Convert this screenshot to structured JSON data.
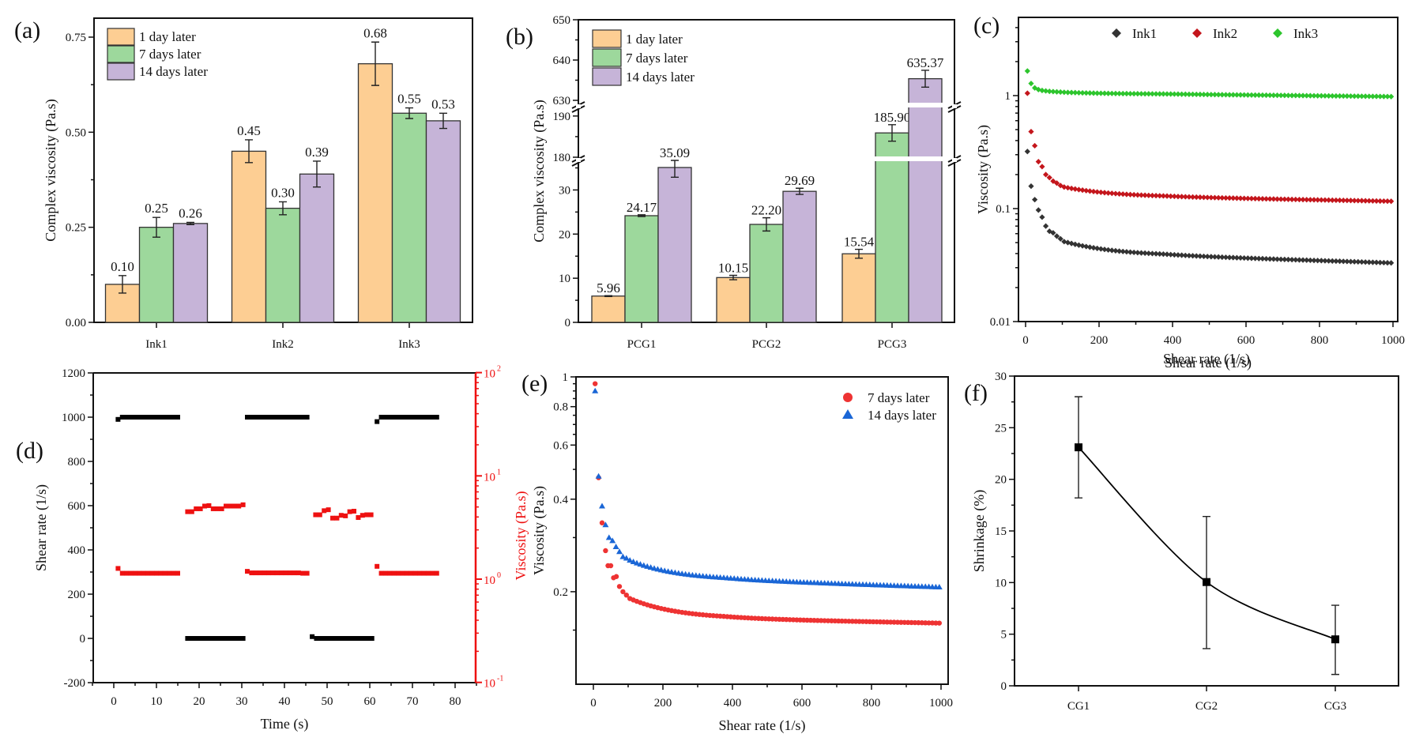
{
  "figure": {
    "panel_labels": [
      "(a)",
      "(b)",
      "(c)",
      "(d)",
      "(e)",
      "(f)"
    ]
  },
  "colors": {
    "day1": "#FDCE93",
    "day7": "#9DD89C",
    "day14": "#C6B4D8",
    "ink1": "#333333",
    "ink2": "#C4161C",
    "ink3": "#2DC52D",
    "red": "#EE3333",
    "blue": "#1A66D6",
    "axis_red": "#EE1111",
    "black": "#000000"
  },
  "chart_data": [
    {
      "id": "a",
      "type": "bar",
      "title": "",
      "xlabel": "",
      "ylabel": "Complex viscosity (Pa.s)",
      "categories": [
        "Ink1",
        "Ink2",
        "Ink3"
      ],
      "ylim": [
        0,
        0.8
      ],
      "yticks": [
        0.0,
        0.25,
        0.5,
        0.75
      ],
      "ytick_labels": [
        "0.00",
        "0.25",
        "0.50",
        "0.75"
      ],
      "legend": "top-left",
      "series": [
        {
          "name": "1 day later",
          "color_key": "day1",
          "values": [
            0.1,
            0.45,
            0.68
          ],
          "errors": [
            0.023,
            0.03,
            0.057
          ],
          "labels": [
            "0.10",
            "0.45",
            "0.68"
          ]
        },
        {
          "name": "7 days later",
          "color_key": "day7",
          "values": [
            0.25,
            0.3,
            0.55
          ],
          "errors": [
            0.026,
            0.017,
            0.014
          ],
          "labels": [
            "0.25",
            "0.30",
            "0.55"
          ]
        },
        {
          "name": "14 days later",
          "color_key": "day14",
          "values": [
            0.26,
            0.39,
            0.53
          ],
          "errors": [
            0.003,
            0.034,
            0.02
          ],
          "labels": [
            "0.26",
            "0.39",
            "0.53"
          ]
        }
      ]
    },
    {
      "id": "b",
      "type": "bar",
      "title": "",
      "xlabel": "",
      "ylabel": "Complex viscosity (Pa.s)",
      "categories": [
        "PCG1",
        "PCG2",
        "PCG3"
      ],
      "axis_breaks": [
        [
          36.7,
          180
        ],
        [
          191.5,
          630
        ]
      ],
      "ylim": [
        0,
        650
      ],
      "yticks": [
        0,
        10,
        20,
        30,
        180,
        190,
        630,
        640,
        650
      ],
      "ytick_labels": [
        "0",
        "10",
        "20",
        "30",
        "180",
        "190",
        "630",
        "640",
        "650"
      ],
      "legend": "top-left",
      "series": [
        {
          "name": "1 day later",
          "color_key": "day1",
          "values": [
            5.96,
            10.15,
            15.54
          ],
          "errors": [
            0.1,
            0.5,
            1.0
          ],
          "labels": [
            "5.96",
            "10.15",
            "15.54"
          ]
        },
        {
          "name": "7 days later",
          "color_key": "day7",
          "values": [
            24.17,
            22.2,
            185.9
          ],
          "errors": [
            0.2,
            1.5,
            2.0
          ],
          "labels": [
            "24.17",
            "22.20",
            "185.90"
          ]
        },
        {
          "name": "14 days later",
          "color_key": "day14",
          "values": [
            35.09,
            29.69,
            635.37
          ],
          "errors": [
            2.2,
            0.7,
            2.1
          ],
          "labels": [
            "35.09",
            "29.69",
            "635.37"
          ]
        }
      ]
    },
    {
      "id": "c",
      "type": "scatter",
      "title": "",
      "xlabel": "Shear rate (1/s)",
      "ylabel": "Viscosity (Pa.s)",
      "yscale": "log",
      "xlim": [
        -20,
        1015
      ],
      "ylim": [
        0.01,
        4.9
      ],
      "xticks": [
        0,
        200,
        400,
        600,
        800,
        1000
      ],
      "yticks": [
        0.01,
        0.1,
        1
      ],
      "ytick_labels": [
        "0.01",
        "0.1",
        "1"
      ],
      "legend": "top-center",
      "marker": "diamond",
      "series": [
        {
          "name": "Ink1",
          "color_key": "ink1",
          "x_first": [
            5,
            15,
            25,
            35,
            45,
            55,
            65,
            75,
            85,
            95
          ],
          "y_first": [
            0.32,
            0.158,
            0.12,
            0.097,
            0.084,
            0.07,
            0.063,
            0.061,
            0.057,
            0.054
          ],
          "plateau": {
            "from": 105,
            "to": 1000,
            "y_start": 0.051,
            "y_mid": 0.038,
            "y_end": 0.033
          }
        },
        {
          "name": "Ink2",
          "color_key": "ink2",
          "x_first": [
            5,
            15,
            25,
            35,
            45,
            55,
            65,
            75,
            85,
            95
          ],
          "y_first": [
            1.05,
            0.48,
            0.36,
            0.26,
            0.235,
            0.2,
            0.188,
            0.175,
            0.168,
            0.16
          ],
          "plateau": {
            "from": 105,
            "to": 1000,
            "y_start": 0.155,
            "y_mid": 0.126,
            "y_end": 0.116
          }
        },
        {
          "name": "Ink3",
          "color_key": "ink3",
          "x_first": [
            5,
            15,
            25,
            35,
            45,
            55,
            65,
            75,
            85,
            95
          ],
          "y_first": [
            1.65,
            1.28,
            1.17,
            1.13,
            1.11,
            1.1,
            1.09,
            1.085,
            1.08,
            1.075
          ],
          "plateau": {
            "from": 105,
            "to": 1000,
            "y_start": 1.07,
            "y_mid": 1.03,
            "y_end": 0.98
          }
        }
      ]
    },
    {
      "id": "d",
      "type": "scatter",
      "title": "",
      "xlabel": "Time (s)",
      "ylabel": "Shear rate (1/s)",
      "ylabel_right": "Viscosity (Pa.s)",
      "xlim": [
        -5,
        85
      ],
      "ylim": [
        -200,
        1200
      ],
      "ylim_right": [
        0.1,
        100
      ],
      "yscale_right": "log",
      "xticks": [
        0,
        10,
        20,
        30,
        40,
        50,
        60,
        70,
        80
      ],
      "yticks": [
        -200,
        0,
        200,
        400,
        600,
        800,
        1000,
        1200
      ],
      "yticks_right_labels": [
        "10",
        "10",
        "10",
        "10"
      ],
      "yticks_right_exp": [
        "-1",
        "0",
        "1",
        "2"
      ],
      "marker": "square",
      "series": [
        {
          "name": "Shear rate",
          "color_key": "black",
          "axis": "left",
          "segments": [
            {
              "t": [
                1,
                2,
                3,
                4,
                5,
                6,
                7,
                8,
                9,
                10,
                11,
                12,
                13,
                14,
                15
              ],
              "v": [
                990,
                1000,
                1000,
                1000,
                1000,
                1000,
                1000,
                1000,
                1000,
                1000,
                1000,
                1000,
                1000,
                1000,
                1000
              ]
            },
            {
              "t": [
                17.3,
                18.3,
                19.3,
                20.3,
                21.3,
                22.3,
                23.3,
                24.3,
                25.3,
                26.3,
                27.3,
                28.3,
                29.3,
                30.3
              ],
              "v": [
                0,
                0,
                0,
                0,
                0,
                0,
                0,
                0,
                0,
                0,
                0,
                0,
                0,
                0
              ]
            },
            {
              "t": [
                31.3,
                32.3,
                33.3,
                34.3,
                35.3,
                36.3,
                37.3,
                38.3,
                39.3,
                40.3,
                41.3,
                42.3,
                43.3,
                44.3,
                45.3
              ],
              "v": [
                1000,
                1000,
                1000,
                1000,
                1000,
                1000,
                1000,
                1000,
                1000,
                1000,
                1000,
                1000,
                1000,
                1000,
                1000
              ]
            },
            {
              "t": [
                46.5,
                47.5,
                48.5,
                49.5,
                50.5,
                51.5,
                52.5,
                53.5,
                54.5,
                55.5,
                56.5,
                57.5,
                58.5,
                59.5,
                60.5
              ],
              "v": [
                8,
                0,
                0,
                0,
                0,
                0,
                0,
                0,
                0,
                0,
                0,
                0,
                0,
                0,
                0
              ]
            },
            {
              "t": [
                61.7,
                62.7,
                63.7,
                64.7,
                65.7,
                66.7,
                67.7,
                68.7,
                69.7,
                70.7,
                71.7,
                72.7,
                73.7,
                74.7,
                75.7
              ],
              "v": [
                980,
                1000,
                1000,
                1000,
                1000,
                1000,
                1000,
                1000,
                1000,
                1000,
                1000,
                1000,
                1000,
                1000,
                1000
              ]
            }
          ]
        },
        {
          "name": "Viscosity",
          "color_key": "axis_red",
          "axis": "right",
          "segments": [
            {
              "t": [
                1,
                2,
                3,
                4,
                5,
                6,
                7,
                8,
                9,
                10,
                11,
                12,
                13,
                14,
                15
              ],
              "v": [
                1.27,
                1.14,
                1.14,
                1.14,
                1.14,
                1.14,
                1.14,
                1.14,
                1.14,
                1.14,
                1.14,
                1.14,
                1.14,
                1.14,
                1.14
              ]
            },
            {
              "t": [
                17.3,
                18.3,
                19.3,
                20.3,
                21.3,
                22.3,
                23.3,
                24.3,
                25.3,
                26.3,
                27.3,
                28.3,
                29.3,
                30.3
              ],
              "v": [
                4.5,
                4.5,
                4.8,
                4.8,
                5.1,
                5.15,
                4.8,
                4.8,
                4.8,
                5.1,
                5.1,
                5.1,
                5.1,
                5.25
              ]
            },
            {
              "t": [
                31.3,
                32.3,
                33.3,
                34.3,
                35.3,
                36.3,
                37.3,
                38.3,
                39.3,
                40.3,
                41.3,
                42.3,
                43.3,
                44.3,
                45.3
              ],
              "v": [
                1.19,
                1.15,
                1.15,
                1.15,
                1.15,
                1.15,
                1.15,
                1.15,
                1.15,
                1.15,
                1.15,
                1.15,
                1.15,
                1.14,
                1.14
              ]
            },
            {
              "t": [
                47.3,
                48.3,
                49.3,
                50.3,
                51.3,
                52.3,
                53.3,
                54.3,
                55.3,
                56.3,
                57.3,
                58.3,
                59.3,
                60.3
              ],
              "v": [
                4.2,
                4.2,
                4.6,
                4.7,
                3.9,
                3.9,
                4.15,
                4.1,
                4.5,
                4.55,
                3.95,
                4.15,
                4.2,
                4.2
              ]
            },
            {
              "t": [
                61.7,
                62.7,
                63.7,
                64.7,
                65.7,
                66.7,
                67.7,
                68.7,
                69.7,
                70.7,
                71.7,
                72.7,
                73.7,
                74.7,
                75.7
              ],
              "v": [
                1.33,
                1.14,
                1.14,
                1.14,
                1.14,
                1.14,
                1.14,
                1.14,
                1.14,
                1.14,
                1.14,
                1.14,
                1.14,
                1.14,
                1.14
              ]
            }
          ]
        }
      ]
    },
    {
      "id": "e",
      "type": "scatter",
      "title": "",
      "xlabel": "Shear rate (1/s)",
      "ylabel": "Viscosity (Pa.s)",
      "ylabel_overlay": "Viscosity (Pa.s)",
      "yscale": "log",
      "xlim": [
        -50,
        1020
      ],
      "ylim": [
        0.1,
        1
      ],
      "xticks": [
        0,
        200,
        400,
        600,
        800,
        1000
      ],
      "yticks": [
        0.2,
        0.4,
        0.6,
        0.8,
        1
      ],
      "ytick_labels": [
        "0.2",
        "0.4",
        "0.6",
        "0.8",
        "1"
      ],
      "legend": "top-right",
      "series": [
        {
          "name": "7 days later",
          "color_key": "red",
          "marker": "circle",
          "x_first": [
            5,
            15,
            25,
            35,
            42,
            50,
            58,
            66,
            75,
            85,
            95
          ],
          "y_first": [
            0.95,
            0.47,
            0.335,
            0.272,
            0.243,
            0.243,
            0.222,
            0.224,
            0.208,
            0.2,
            0.195
          ],
          "plateau": {
            "from": 105,
            "to": 1000,
            "y_start": 0.19,
            "y_mid": 0.163,
            "y_end": 0.158
          }
        },
        {
          "name": "14 days later",
          "color_key": "blue",
          "marker": "triangle",
          "x_first": [
            5,
            15,
            25,
            35,
            45,
            55,
            65,
            75,
            85,
            95
          ],
          "y_first": [
            0.9,
            0.475,
            0.38,
            0.33,
            0.3,
            0.293,
            0.28,
            0.27,
            0.26,
            0.257
          ],
          "plateau": {
            "from": 105,
            "to": 1000,
            "y_start": 0.253,
            "y_mid": 0.218,
            "y_end": 0.207
          }
        }
      ]
    },
    {
      "id": "f",
      "type": "line",
      "title": "",
      "xlabel": "",
      "ylabel": "Shrinkage (%)",
      "top_text": "Shear rate (1/s)",
      "categories": [
        "CG1",
        "CG2",
        "CG3"
      ],
      "ylim": [
        0,
        30
      ],
      "yticks": [
        0,
        5,
        10,
        15,
        20,
        25,
        30
      ],
      "series": [
        {
          "name": "Shrinkage",
          "color_key": "black",
          "values": [
            23.1,
            10.05,
            4.5
          ],
          "err_low": [
            18.2,
            3.6,
            1.1
          ],
          "err_high": [
            28.0,
            16.4,
            7.8
          ]
        }
      ]
    }
  ]
}
